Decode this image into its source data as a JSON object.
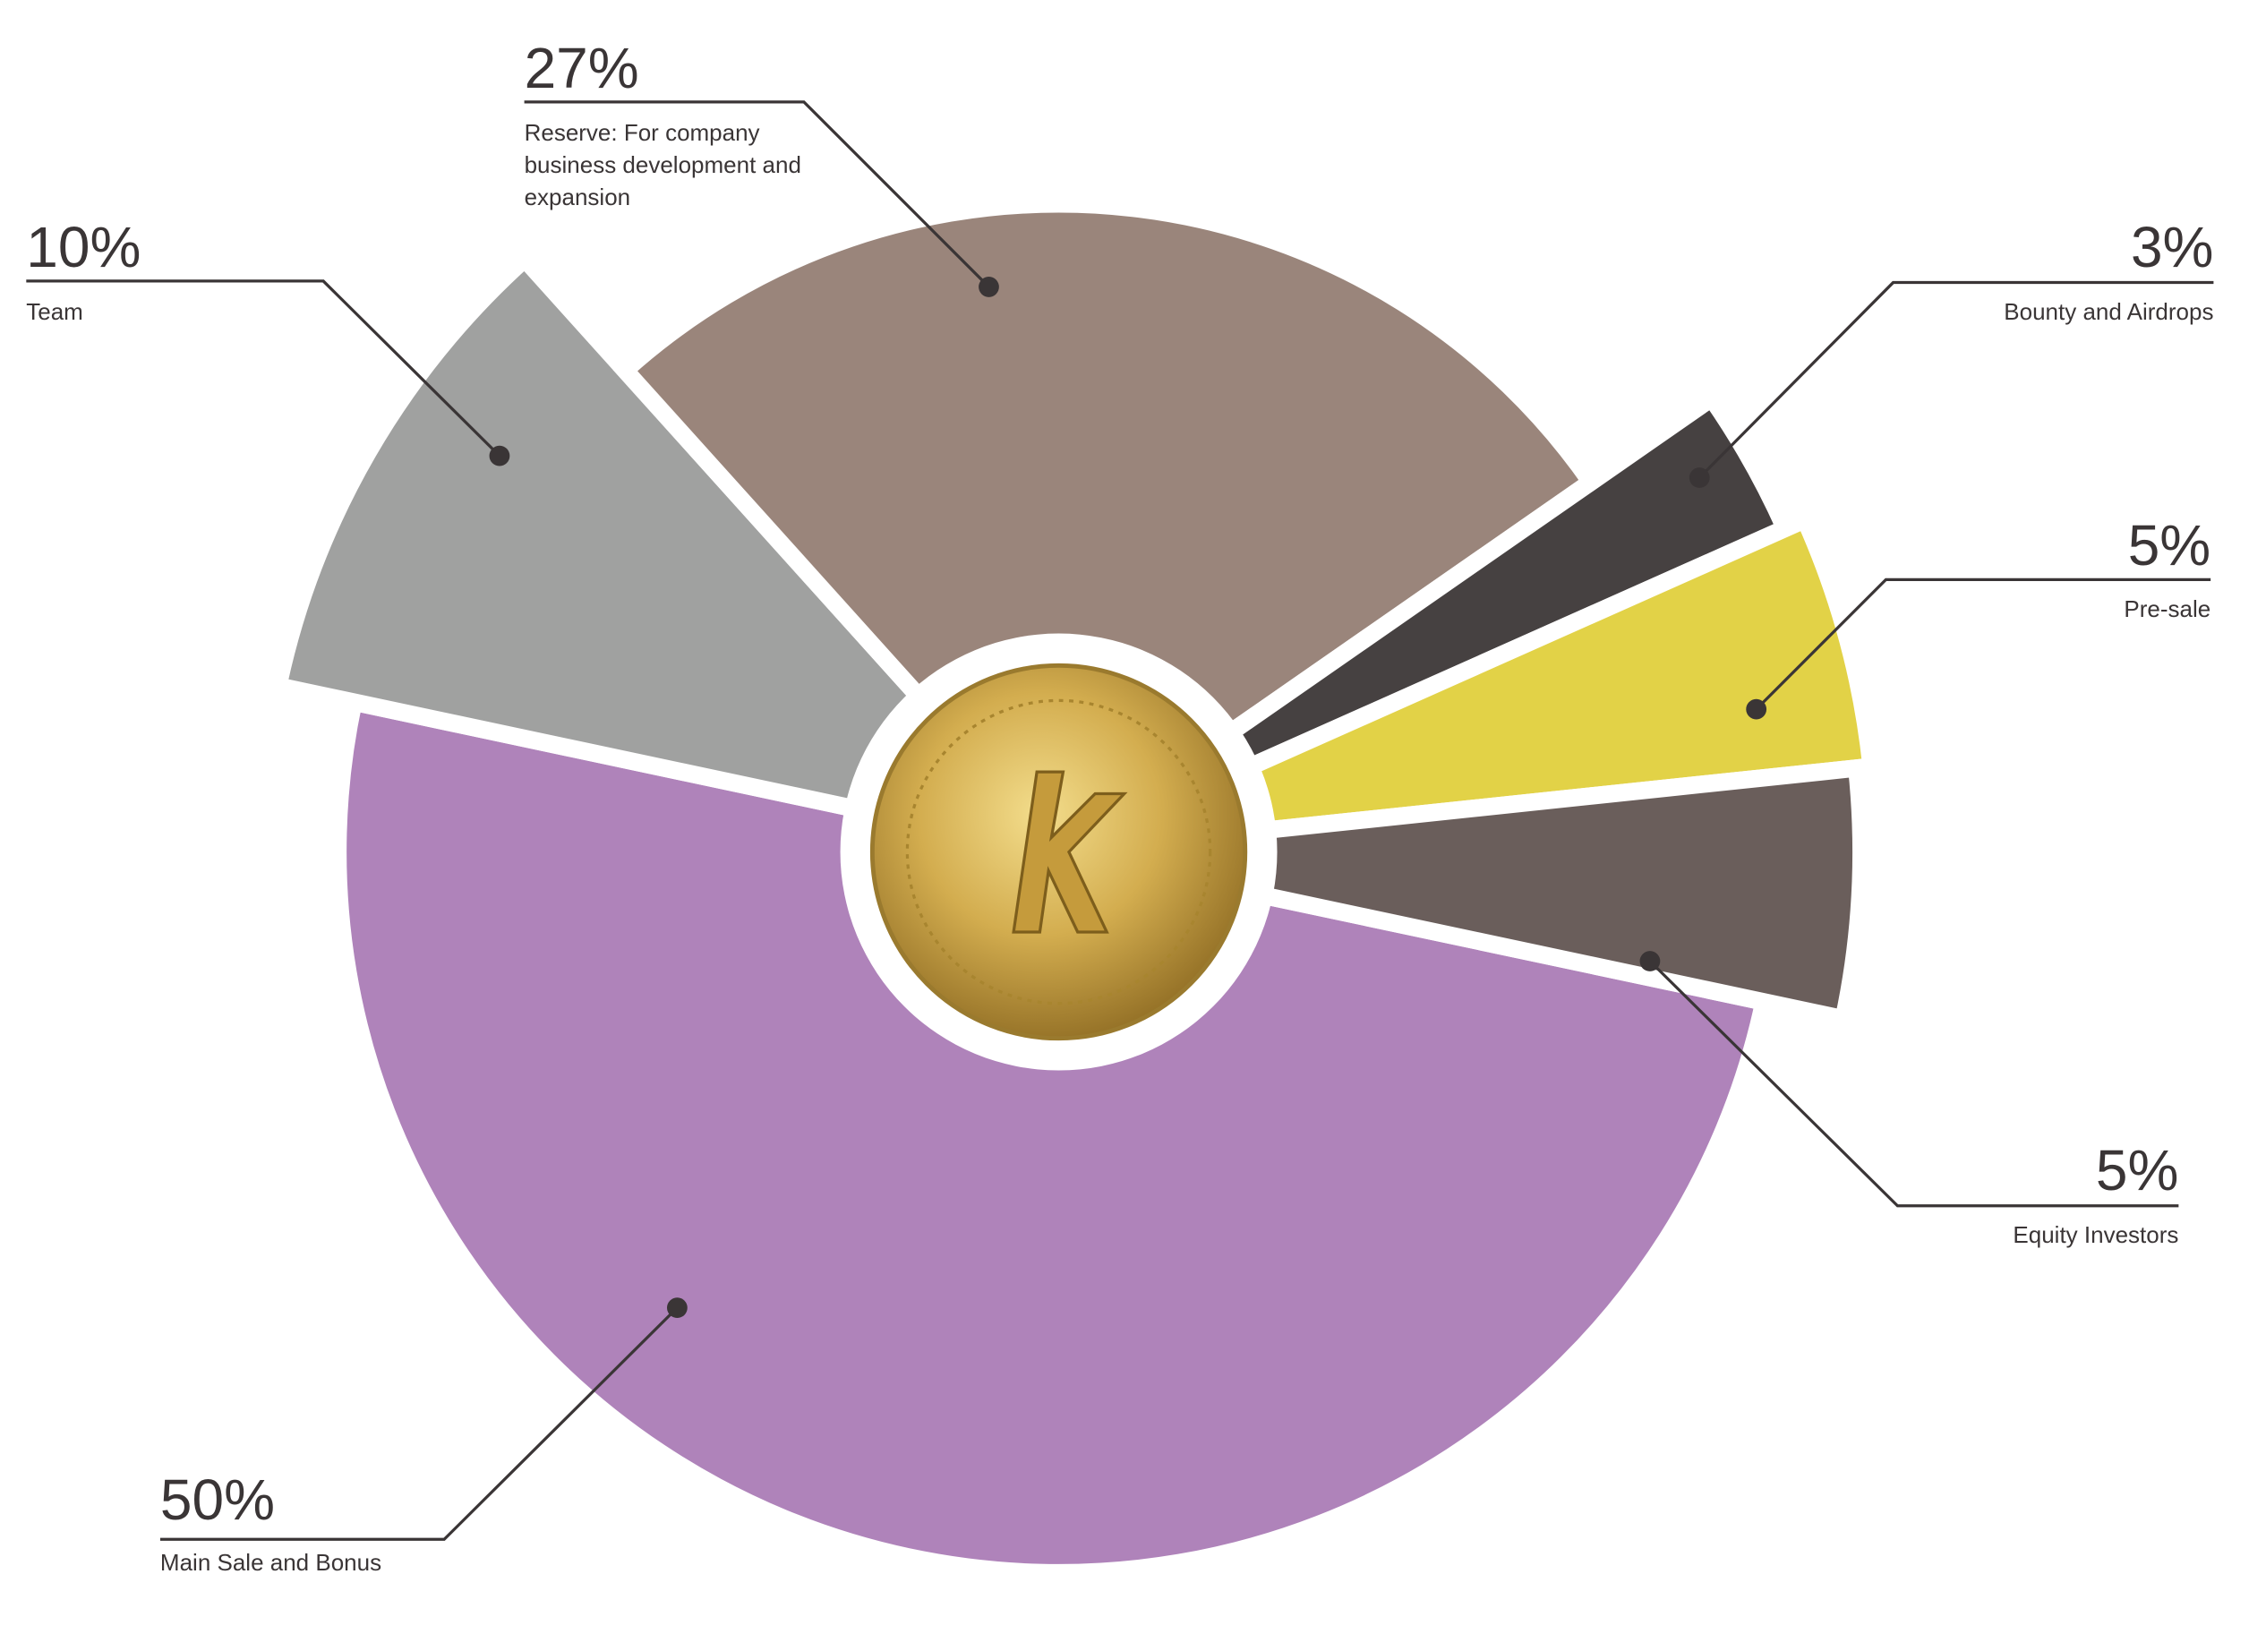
{
  "chart_data": {
    "type": "pie",
    "categories": [
      "Main Sale and Bonus",
      "Team",
      "Reserve: For company business development and expansion",
      "Bounty and Airdrops",
      "Pre-sale",
      "Equity Investors"
    ],
    "values": [
      50,
      10,
      27,
      3,
      5,
      5
    ],
    "value_labels": [
      "50%",
      "10%",
      "27%",
      "3%",
      "5%",
      "5%"
    ],
    "colors": [
      "#af83ba",
      "#a0a1a0",
      "#9a857b",
      "#464141",
      "#e2d247",
      "#6a5e5b"
    ]
  }
}
